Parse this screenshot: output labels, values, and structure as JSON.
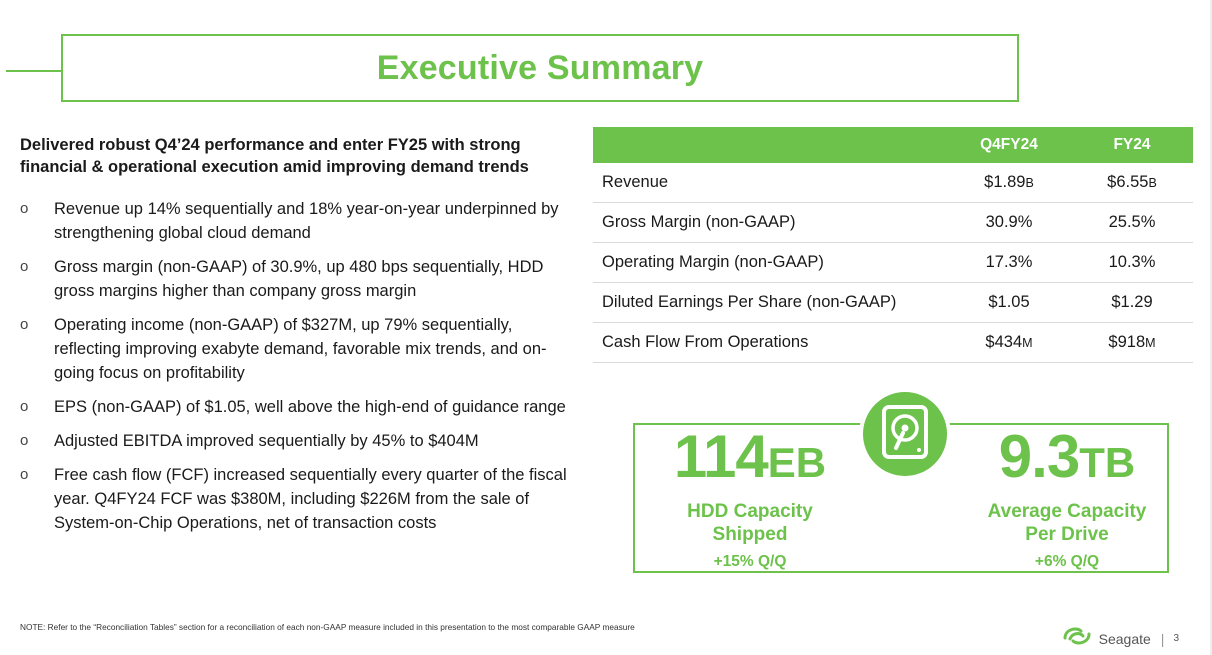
{
  "title": "Executive Summary",
  "intro": "Delivered robust Q4’24 performance and enter FY25 with strong financial & operational execution amid improving demand trends",
  "bullet_marker": "o",
  "bullets": [
    "Revenue up 14% sequentially and 18% year-on-year underpinned by strengthening global cloud demand",
    "Gross margin (non-GAAP) of 30.9%, up 480 bps sequentially, HDD gross margins higher than company gross margin",
    "Operating income (non-GAAP) of $327M, up 79% sequentially, reflecting improving exabyte demand, favorable mix trends, and on-going focus on profitability",
    "EPS (non-GAAP) of $1.05, well above the high-end of guidance range",
    "Adjusted EBITDA improved sequentially by 45% to $404M",
    "Free cash flow (FCF) increased sequentially every quarter of the fiscal year. Q4FY24 FCF was $380M, including $226M from the sale of System-on-Chip Operations, net of transaction costs"
  ],
  "table": {
    "columns": [
      "Q4FY24",
      "FY24"
    ],
    "rows": [
      {
        "label": "Revenue",
        "q4": {
          "value": "$1.89",
          "unit": "B"
        },
        "fy": {
          "value": "$6.55",
          "unit": "B"
        }
      },
      {
        "label": "Gross Margin (non-GAAP)",
        "q4": {
          "value": "30.9%",
          "unit": ""
        },
        "fy": {
          "value": "25.5%",
          "unit": ""
        }
      },
      {
        "label": "Operating Margin (non-GAAP)",
        "q4": {
          "value": "17.3%",
          "unit": ""
        },
        "fy": {
          "value": "10.3%",
          "unit": ""
        }
      },
      {
        "label": "Diluted Earnings Per Share (non-GAAP)",
        "q4": {
          "value": "$1.05",
          "unit": ""
        },
        "fy": {
          "value": "$1.29",
          "unit": ""
        }
      },
      {
        "label": "Cash Flow From Operations",
        "q4": {
          "value": "$434",
          "unit": "M"
        },
        "fy": {
          "value": "$918",
          "unit": "M"
        }
      }
    ]
  },
  "kpis": {
    "left": {
      "value": "114",
      "suffix": "EB",
      "label_line1": "HDD Capacity",
      "label_line2": "Shipped",
      "change": "+15% Q/Q"
    },
    "right": {
      "value": "9.3",
      "suffix": "TB",
      "label_line1": "Average Capacity",
      "label_line2": "Per Drive",
      "change": "+6% Q/Q"
    }
  },
  "note": "NOTE: Refer to the “Reconciliation Tables” section for a reconciliation of each non-GAAP measure included in this presentation to the most comparable GAAP measure",
  "footer": {
    "brand": "Seagate",
    "separator": "|",
    "page": "3"
  },
  "icons": {
    "badge": "hard-drive-icon",
    "logo": "seagate-logo-icon"
  },
  "colors": {
    "accent": "#6cc24a",
    "text": "#1a1a1a",
    "rule": "#d9d9d9"
  }
}
